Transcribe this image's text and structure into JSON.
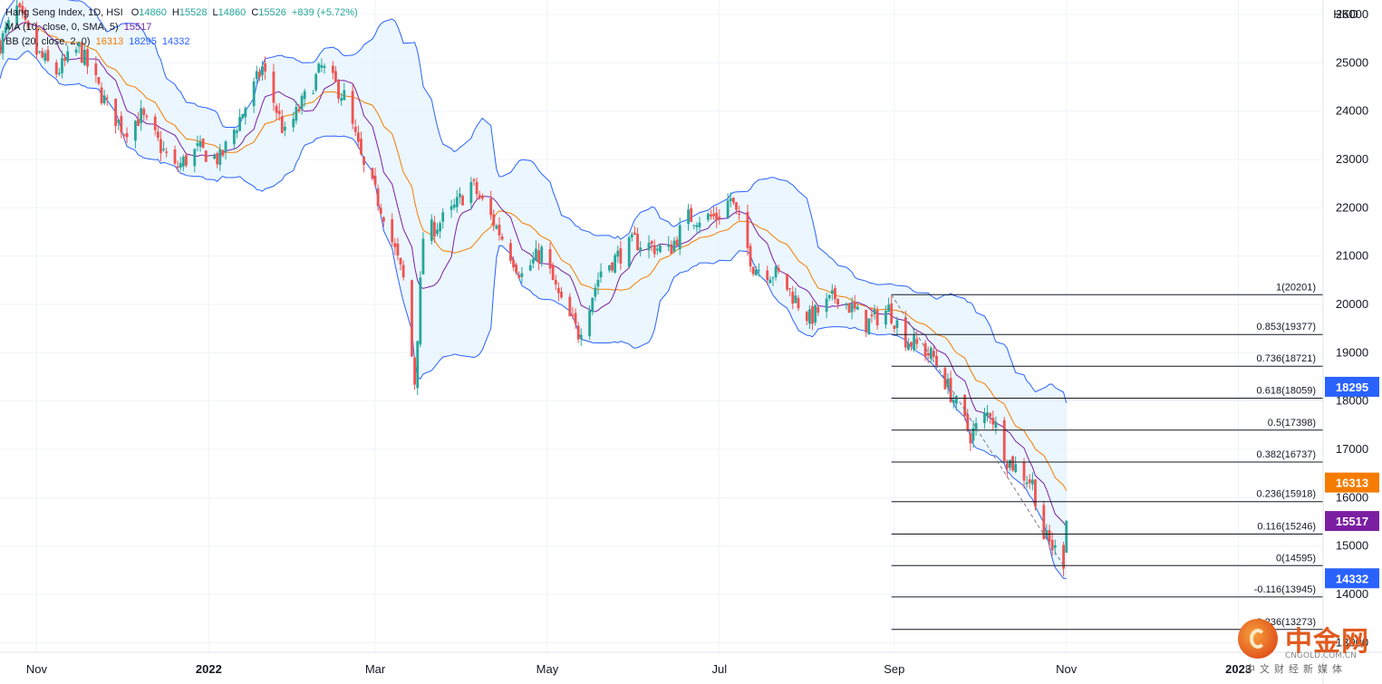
{
  "legend": {
    "title": "Hang Seng Index, 1D, HSI",
    "open_label": "O",
    "open": "14860",
    "high_label": "H",
    "high": "15528",
    "low_label": "L",
    "low": "14860",
    "close_label": "C",
    "close": "15526",
    "change": "+839 (+5.72%)",
    "ma_label": "MA (10, close, 0, SMA, 5)",
    "ma_value": "15517",
    "bb_label": "BB (20, close, 2, 0)",
    "bb_basis": "16313",
    "bb_upper": "18295",
    "bb_lower": "14332"
  },
  "colors": {
    "up": "#26a69a",
    "down": "#ef5350",
    "ma": "#7b1fa2",
    "bb_basis": "#f57c00",
    "bb_band": "#2962ff",
    "bb_fill": "#e3f2fd",
    "fib_line": "#131722",
    "grid": "#f0f3fa"
  },
  "chart_data": {
    "type": "candlestick",
    "currency_label": "HKD",
    "ylim": [
      12800,
      26300
    ],
    "y_ticks": [
      26000,
      25000,
      24000,
      23000,
      22000,
      21000,
      20000,
      19000,
      18000,
      17000,
      16000,
      15000,
      14000,
      13000
    ],
    "x_ticks": [
      "Nov",
      "2022",
      "Mar",
      "May",
      "Jul",
      "Sep",
      "Nov",
      "2023"
    ],
    "x_tick_dates": [
      "2021-11-01",
      "2022-01-01",
      "2022-03-01",
      "2022-05-01",
      "2022-07-01",
      "2022-09-01",
      "2022-11-01",
      "2023-01-01"
    ],
    "x_range": [
      "2021-10-19",
      "2023-01-31"
    ],
    "last_date": "2022-11-01",
    "close_anchors": [
      [
        "2021-10-19",
        25400
      ],
      [
        "2021-10-25",
        26100
      ],
      [
        "2021-11-01",
        25200
      ],
      [
        "2021-11-08",
        24800
      ],
      [
        "2021-11-16",
        25300
      ],
      [
        "2021-11-26",
        24100
      ],
      [
        "2021-12-02",
        23600
      ],
      [
        "2021-12-08",
        23900
      ],
      [
        "2021-12-20",
        22800
      ],
      [
        "2021-12-28",
        23200
      ],
      [
        "2022-01-05",
        23000
      ],
      [
        "2022-01-14",
        24100
      ],
      [
        "2022-01-20",
        24900
      ],
      [
        "2022-01-28",
        23500
      ],
      [
        "2022-02-10",
        24900
      ],
      [
        "2022-02-18",
        24300
      ],
      [
        "2022-02-25",
        22800
      ],
      [
        "2022-03-04",
        21900
      ],
      [
        "2022-03-11",
        20500
      ],
      [
        "2022-03-15",
        18400
      ],
      [
        "2022-03-18",
        21400
      ],
      [
        "2022-03-28",
        21900
      ],
      [
        "2022-04-04",
        22500
      ],
      [
        "2022-04-14",
        21500
      ],
      [
        "2022-04-22",
        20600
      ],
      [
        "2022-04-29",
        21100
      ],
      [
        "2022-05-06",
        20000
      ],
      [
        "2022-05-12",
        19400
      ],
      [
        "2022-05-20",
        20700
      ],
      [
        "2022-06-01",
        21300
      ],
      [
        "2022-06-13",
        21100
      ],
      [
        "2022-06-20",
        21800
      ],
      [
        "2022-06-30",
        21800
      ],
      [
        "2022-07-05",
        22200
      ],
      [
        "2022-07-13",
        20800
      ],
      [
        "2022-07-22",
        20600
      ],
      [
        "2022-08-02",
        19700
      ],
      [
        "2022-08-12",
        20200
      ],
      [
        "2022-08-22",
        19600
      ],
      [
        "2022-08-30",
        19900
      ],
      [
        "2022-09-05",
        19300
      ],
      [
        "2022-09-15",
        18900
      ],
      [
        "2022-09-28",
        17300
      ],
      [
        "2022-10-05",
        17800
      ],
      [
        "2022-10-11",
        16800
      ],
      [
        "2022-10-20",
        16300
      ],
      [
        "2022-10-24",
        15200
      ],
      [
        "2022-10-31",
        14700
      ],
      [
        "2022-11-01",
        15526
      ]
    ],
    "last_candle": {
      "date": "2022-11-01",
      "open": 14860,
      "high": 15528,
      "low": 14860,
      "close": 15526
    },
    "series": [
      {
        "name": "MA (10, close, 0, SMA, 5)",
        "type": "line",
        "last": 15517
      },
      {
        "name": "BB (20, close, 2, 0)",
        "type": "band",
        "basis_last": 16313,
        "upper_last": 18295,
        "lower_last": 14332
      }
    ],
    "fibonacci": {
      "start_date": "2022-08-31",
      "end_date": "2022-10-31",
      "levels": [
        {
          "ratio": "1",
          "price": 20201
        },
        {
          "ratio": "0.853",
          "price": 19377
        },
        {
          "ratio": "0.736",
          "price": 18721
        },
        {
          "ratio": "0.618",
          "price": 18059
        },
        {
          "ratio": "0.5",
          "price": 17398
        },
        {
          "ratio": "0.382",
          "price": 16737
        },
        {
          "ratio": "0.236",
          "price": 15918
        },
        {
          "ratio": "0.116",
          "price": 15246
        },
        {
          "ratio": "0",
          "price": 14595
        },
        {
          "ratio": "-0.116",
          "price": 13945
        },
        {
          "ratio": "-0.236",
          "price": 13273
        }
      ]
    },
    "price_tags": [
      {
        "name": "bb-upper",
        "value": 18295,
        "color": "#2962ff"
      },
      {
        "name": "bb-basis",
        "value": 16313,
        "color": "#f57c00"
      },
      {
        "name": "ma",
        "value": 15517,
        "color": "#7b1fa2"
      },
      {
        "name": "bb-lower",
        "value": 14332,
        "color": "#2962ff"
      }
    ]
  },
  "watermark": {
    "brand_cn": "中金网",
    "brand_en": "CNGOLD.COM.CN",
    "subtitle": "中文财经新媒体"
  }
}
